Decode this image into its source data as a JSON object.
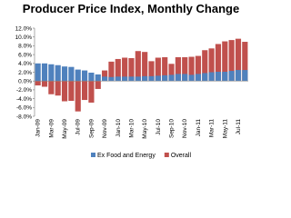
{
  "chart_data": {
    "type": "bar",
    "title": "Producer Price Index, Monthly Change",
    "categories": [
      "Jan-09",
      null,
      "Mar-09",
      null,
      "May-09",
      null,
      "Jul-09",
      null,
      "Sep-09",
      null,
      "Nov-09",
      null,
      "Jan-10",
      null,
      "Mar-10",
      null,
      "May-10",
      null,
      "Jul-10",
      null,
      "Sep-10",
      null,
      "Nov-10",
      null,
      "Jan-11",
      null,
      "Mar-11",
      null,
      "May-11",
      null,
      "Jul-11",
      null
    ],
    "series": [
      {
        "name": "Overall",
        "color": "#c0504d",
        "values": [
          -1.0,
          -1.3,
          -3.0,
          -3.3,
          -4.6,
          -4.5,
          -6.9,
          -4.3,
          -4.9,
          -1.8,
          2.4,
          4.4,
          5.0,
          5.3,
          5.2,
          6.8,
          6.6,
          4.5,
          5.3,
          5.4,
          3.9,
          5.4,
          5.4,
          5.5,
          5.7,
          7.0,
          7.4,
          8.4,
          9.0,
          9.3,
          9.6,
          8.9
        ]
      },
      {
        "name": "Ex Food and Energy",
        "color": "#4f81bd",
        "values": [
          4.0,
          4.0,
          3.8,
          3.6,
          3.3,
          3.2,
          2.6,
          2.4,
          1.9,
          1.5,
          1.0,
          0.9,
          1.0,
          1.0,
          1.0,
          1.0,
          1.1,
          1.1,
          1.2,
          1.3,
          1.4,
          1.6,
          1.6,
          1.4,
          1.6,
          1.8,
          2.0,
          2.1,
          2.1,
          2.3,
          2.5,
          2.5
        ]
      }
    ],
    "legend_order": [
      "Ex Food and Energy",
      "Overall"
    ],
    "ylim": [
      -8,
      12
    ],
    "yticks": [
      {
        "value": -8,
        "label": "-8.0%"
      },
      {
        "value": -6,
        "label": "-6.0%"
      },
      {
        "value": -4,
        "label": "-4.0%"
      },
      {
        "value": -2,
        "label": "-2.0%"
      },
      {
        "value": 0,
        "label": "0.0%"
      },
      {
        "value": 2,
        "label": "2.0%"
      },
      {
        "value": 4,
        "label": "4.0%"
      },
      {
        "value": 6,
        "label": "6.0%"
      },
      {
        "value": 8,
        "label": "8.0%"
      },
      {
        "value": 10,
        "label": "10.0%"
      },
      {
        "value": 12,
        "label": "12.0%"
      }
    ]
  }
}
